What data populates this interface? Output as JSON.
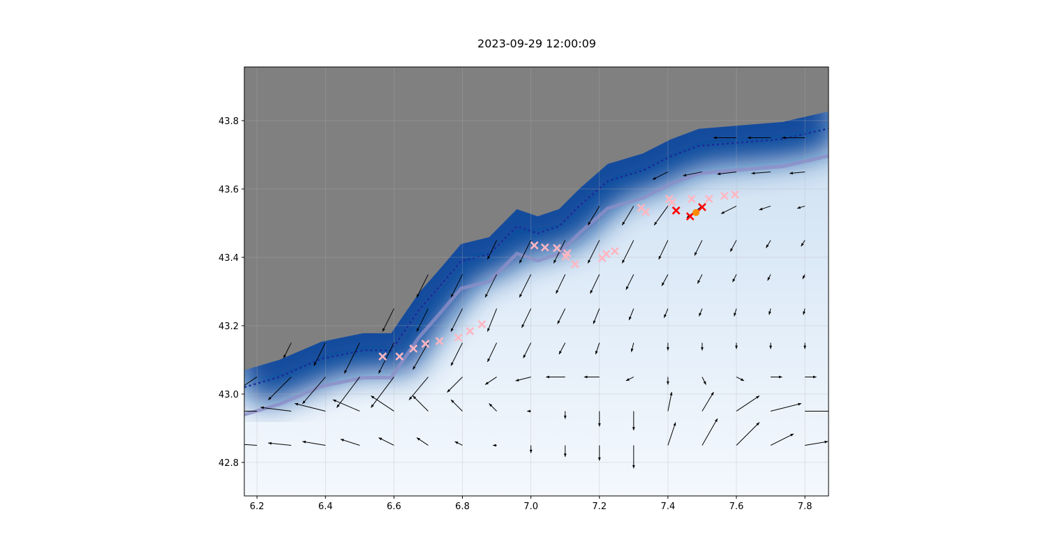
{
  "chart_data": {
    "type": "map-quiver",
    "title": "2023-09-29 12:00:09",
    "xlim": [
      6.163,
      7.869
    ],
    "ylim": [
      42.702,
      43.957
    ],
    "xticks": [
      "6.2",
      "6.4",
      "6.6",
      "6.8",
      "7.0",
      "7.2",
      "7.4",
      "7.6",
      "7.8"
    ],
    "yticks": [
      "42.8",
      "43.0",
      "43.2",
      "43.4",
      "43.6",
      "43.8"
    ],
    "grid": true,
    "colors": {
      "land": "#808080",
      "sea_deep": "#08479a",
      "sea_shallow": "#f2f7fd",
      "marker_pink": "#ffb6c1",
      "marker_red": "#ff0000",
      "marker_orange": "#ff8c00",
      "arrow": "#000000",
      "contour_dark": "#1a2a9a",
      "contour_pale": "#8c8fc8"
    },
    "coastline": [
      [
        6.163,
        43.07
      ],
      [
        6.265,
        43.1
      ],
      [
        6.388,
        43.153
      ],
      [
        6.51,
        43.178
      ],
      [
        6.592,
        43.178
      ],
      [
        6.673,
        43.296
      ],
      [
        6.735,
        43.367
      ],
      [
        6.796,
        43.439
      ],
      [
        6.878,
        43.459
      ],
      [
        6.959,
        43.541
      ],
      [
        7.02,
        43.52
      ],
      [
        7.082,
        43.541
      ],
      [
        7.143,
        43.602
      ],
      [
        7.224,
        43.673
      ],
      [
        7.327,
        43.704
      ],
      [
        7.408,
        43.745
      ],
      [
        7.49,
        43.776
      ],
      [
        7.612,
        43.786
      ],
      [
        7.735,
        43.796
      ],
      [
        7.869,
        43.827
      ]
    ],
    "quiver": {
      "lon": [
        6.2,
        6.3,
        6.4,
        6.5,
        6.6,
        6.7,
        6.8,
        6.9,
        7.0,
        7.1,
        7.2,
        7.3,
        7.4,
        7.5,
        7.6,
        7.7,
        7.8
      ],
      "lat": [
        42.85,
        42.95,
        43.05,
        43.15,
        43.25,
        43.35,
        43.45,
        43.55,
        43.65,
        43.75
      ],
      "u": [
        [
          -0.3,
          -0.3,
          -0.3,
          -0.25,
          -0.2,
          -0.15,
          -0.1,
          -0.05,
          0,
          0,
          0,
          0,
          0.1,
          0.2,
          0.3,
          0.3,
          0.3
        ],
        [
          -0.35,
          -0.4,
          -0.4,
          -0.35,
          -0.3,
          -0.2,
          -0.15,
          -0.1,
          -0.05,
          0,
          0,
          0,
          0.05,
          0.15,
          0.3,
          0.4,
          0.4
        ],
        [
          -0.3,
          -0.3,
          -0.3,
          -0.3,
          -0.3,
          -0.25,
          -0.2,
          -0.15,
          -0.2,
          -0.25,
          -0.2,
          -0.1,
          0,
          0.05,
          0.1,
          0.15,
          0.15
        ],
        [
          0,
          -0.1,
          -0.15,
          -0.2,
          -0.2,
          -0.2,
          -0.15,
          -0.12,
          -0.1,
          -0.08,
          -0.05,
          -0.03,
          0,
          0,
          0,
          0,
          0
        ],
        [
          0,
          0,
          0,
          0,
          -0.15,
          -0.15,
          -0.15,
          -0.12,
          -0.12,
          -0.1,
          -0.08,
          -0.06,
          -0.05,
          -0.04,
          -0.03,
          -0.02,
          -0.02
        ],
        [
          0,
          0,
          0,
          0,
          0,
          -0.15,
          -0.15,
          -0.15,
          -0.15,
          -0.12,
          -0.12,
          -0.1,
          -0.08,
          -0.06,
          -0.05,
          -0.04,
          -0.03
        ],
        [
          0,
          0,
          0,
          0,
          0,
          0,
          0,
          -0.12,
          -0.15,
          -0.15,
          -0.15,
          -0.15,
          -0.12,
          -0.1,
          -0.08,
          -0.06,
          -0.05
        ],
        [
          0,
          0,
          0,
          0,
          0,
          0,
          0,
          0,
          0,
          0,
          -0.15,
          -0.15,
          -0.18,
          -0.2,
          -0.2,
          -0.15,
          -0.1
        ],
        [
          0,
          0,
          0,
          0,
          0,
          0,
          0,
          0,
          0,
          0,
          0,
          0,
          -0.2,
          -0.25,
          -0.25,
          -0.25,
          -0.2
        ],
        [
          0,
          0,
          0,
          0,
          0,
          0,
          0,
          0,
          0,
          0,
          0,
          0,
          0,
          0,
          -0.3,
          -0.3,
          -0.3
        ]
      ],
      "v": [
        [
          0.02,
          0.03,
          0.05,
          0.08,
          0.1,
          0.1,
          0.05,
          0,
          -0.1,
          -0.15,
          -0.2,
          -0.3,
          0.3,
          0.35,
          0.3,
          0.15,
          0.05
        ],
        [
          0,
          0.05,
          0.1,
          0.15,
          0.2,
          0.2,
          0.15,
          0.1,
          0,
          -0.1,
          -0.2,
          -0.25,
          0.25,
          0.25,
          0.2,
          0.1,
          0
        ],
        [
          -0.2,
          -0.3,
          -0.35,
          -0.4,
          -0.4,
          -0.3,
          -0.2,
          -0.1,
          -0.05,
          0,
          0,
          -0.05,
          -0.1,
          -0.1,
          -0.05,
          0,
          0
        ],
        [
          0,
          -0.2,
          -0.3,
          -0.4,
          -0.4,
          -0.35,
          -0.3,
          -0.25,
          -0.2,
          -0.15,
          -0.15,
          -0.12,
          -0.1,
          -0.1,
          -0.08,
          -0.08,
          -0.08
        ],
        [
          0,
          0,
          0,
          0,
          -0.3,
          -0.3,
          -0.3,
          -0.3,
          -0.25,
          -0.2,
          -0.2,
          -0.15,
          -0.12,
          -0.1,
          -0.1,
          -0.08,
          -0.08
        ],
        [
          0,
          0,
          0,
          0,
          0,
          -0.3,
          -0.3,
          -0.3,
          -0.3,
          -0.25,
          -0.25,
          -0.2,
          -0.15,
          -0.12,
          -0.1,
          -0.08,
          -0.06
        ],
        [
          0,
          0,
          0,
          0,
          0,
          0,
          0,
          -0.25,
          -0.3,
          -0.3,
          -0.3,
          -0.3,
          -0.25,
          -0.2,
          -0.15,
          -0.1,
          -0.08
        ],
        [
          0,
          0,
          0,
          0,
          0,
          0,
          0,
          0,
          0,
          0,
          -0.25,
          -0.25,
          -0.25,
          -0.15,
          -0.1,
          -0.05,
          -0.03
        ],
        [
          0,
          0,
          0,
          0,
          0,
          0,
          0,
          0,
          0,
          0,
          0,
          0,
          -0.1,
          -0.05,
          -0.03,
          -0.02,
          -0.02
        ],
        [
          0,
          0,
          0,
          0,
          0,
          0,
          0,
          0,
          0,
          0,
          0,
          0,
          0,
          0,
          0,
          0,
          0
        ]
      ]
    },
    "markers_pink": [
      [
        6.567,
        43.11
      ],
      [
        6.616,
        43.11
      ],
      [
        6.657,
        43.133
      ],
      [
        6.692,
        43.147
      ],
      [
        6.733,
        43.155
      ],
      [
        6.788,
        43.165
      ],
      [
        6.822,
        43.184
      ],
      [
        6.857,
        43.204
      ],
      [
        7.01,
        43.435
      ],
      [
        7.041,
        43.429
      ],
      [
        7.076,
        43.427
      ],
      [
        7.106,
        43.412
      ],
      [
        7.129,
        43.38
      ],
      [
        7.102,
        43.402
      ],
      [
        7.208,
        43.398
      ],
      [
        7.22,
        43.41
      ],
      [
        7.245,
        43.418
      ],
      [
        7.322,
        43.545
      ],
      [
        7.335,
        43.533
      ],
      [
        7.404,
        43.571
      ],
      [
        7.412,
        43.561
      ],
      [
        7.469,
        43.571
      ],
      [
        7.52,
        43.571
      ],
      [
        7.565,
        43.58
      ],
      [
        7.596,
        43.584
      ]
    ],
    "markers_red": [
      [
        7.424,
        43.537
      ],
      [
        7.465,
        43.52
      ],
      [
        7.5,
        43.547
      ]
    ],
    "marker_orange": [
      7.482,
      43.531
    ]
  }
}
